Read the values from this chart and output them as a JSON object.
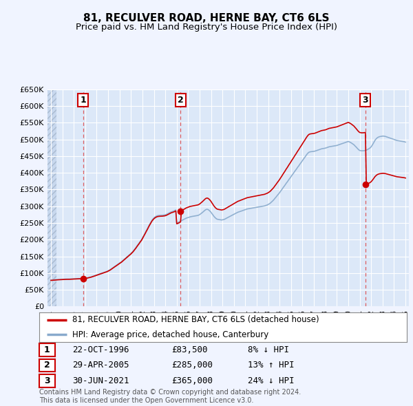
{
  "title": "81, RECULVER ROAD, HERNE BAY, CT6 6LS",
  "subtitle": "Price paid vs. HM Land Registry's House Price Index (HPI)",
  "ytick_values": [
    0,
    50000,
    100000,
    150000,
    200000,
    250000,
    300000,
    350000,
    400000,
    450000,
    500000,
    550000,
    600000,
    650000
  ],
  "xmin": 1993.7,
  "xmax": 2025.3,
  "ymin": 0,
  "ymax": 650000,
  "background_color": "#f0f4ff",
  "plot_bg_color": "#dce8f8",
  "purchases": [
    {
      "year": 1996.81,
      "price": 83500,
      "label": "1"
    },
    {
      "year": 2005.33,
      "price": 285000,
      "label": "2"
    },
    {
      "year": 2021.5,
      "price": 365000,
      "label": "3"
    }
  ],
  "legend_line1": "81, RECULVER ROAD, HERNE BAY, CT6 6LS (detached house)",
  "legend_line2": "HPI: Average price, detached house, Canterbury",
  "table_rows": [
    {
      "num": "1",
      "date": "22-OCT-1996",
      "price": "£83,500",
      "change": "8% ↓ HPI"
    },
    {
      "num": "2",
      "date": "29-APR-2005",
      "price": "£285,000",
      "change": "13% ↑ HPI"
    },
    {
      "num": "3",
      "date": "30-JUN-2021",
      "price": "£365,000",
      "change": "24% ↓ HPI"
    }
  ],
  "footer": "Contains HM Land Registry data © Crown copyright and database right 2024.\nThis data is licensed under the Open Government Licence v3.0.",
  "red_line_color": "#cc0000",
  "blue_line_color": "#88aacc",
  "dashed_line_color": "#dd4444",
  "sale_marker_color": "#cc0000",
  "hpi_years": [
    1994.0,
    1994.08,
    1994.17,
    1994.25,
    1994.33,
    1994.42,
    1994.5,
    1994.58,
    1994.67,
    1994.75,
    1994.83,
    1994.92,
    1995.0,
    1995.08,
    1995.17,
    1995.25,
    1995.33,
    1995.42,
    1995.5,
    1995.58,
    1995.67,
    1995.75,
    1995.83,
    1995.92,
    1996.0,
    1996.08,
    1996.17,
    1996.25,
    1996.33,
    1996.42,
    1996.5,
    1996.58,
    1996.67,
    1996.75,
    1996.83,
    1996.92,
    1997.0,
    1997.08,
    1997.17,
    1997.25,
    1997.33,
    1997.42,
    1997.5,
    1997.58,
    1997.67,
    1997.75,
    1997.83,
    1997.92,
    1998.0,
    1998.08,
    1998.17,
    1998.25,
    1998.33,
    1998.42,
    1998.5,
    1998.58,
    1998.67,
    1998.75,
    1998.83,
    1998.92,
    1999.0,
    1999.08,
    1999.17,
    1999.25,
    1999.33,
    1999.42,
    1999.5,
    1999.58,
    1999.67,
    1999.75,
    1999.83,
    1999.92,
    2000.0,
    2000.08,
    2000.17,
    2000.25,
    2000.33,
    2000.42,
    2000.5,
    2000.58,
    2000.67,
    2000.75,
    2000.83,
    2000.92,
    2001.0,
    2001.08,
    2001.17,
    2001.25,
    2001.33,
    2001.42,
    2001.5,
    2001.58,
    2001.67,
    2001.75,
    2001.83,
    2001.92,
    2002.0,
    2002.08,
    2002.17,
    2002.25,
    2002.33,
    2002.42,
    2002.5,
    2002.58,
    2002.67,
    2002.75,
    2002.83,
    2002.92,
    2003.0,
    2003.08,
    2003.17,
    2003.25,
    2003.33,
    2003.42,
    2003.5,
    2003.58,
    2003.67,
    2003.75,
    2003.83,
    2003.92,
    2004.0,
    2004.08,
    2004.17,
    2004.25,
    2004.33,
    2004.42,
    2004.5,
    2004.58,
    2004.67,
    2004.75,
    2004.83,
    2004.92,
    2005.0,
    2005.08,
    2005.17,
    2005.25,
    2005.33,
    2005.42,
    2005.5,
    2005.58,
    2005.67,
    2005.75,
    2005.83,
    2005.92,
    2006.0,
    2006.08,
    2006.17,
    2006.25,
    2006.33,
    2006.42,
    2006.5,
    2006.58,
    2006.67,
    2006.75,
    2006.83,
    2006.92,
    2007.0,
    2007.08,
    2007.17,
    2007.25,
    2007.33,
    2007.42,
    2007.5,
    2007.58,
    2007.67,
    2007.75,
    2007.83,
    2007.92,
    2008.0,
    2008.08,
    2008.17,
    2008.25,
    2008.33,
    2008.42,
    2008.5,
    2008.58,
    2008.67,
    2008.75,
    2008.83,
    2008.92,
    2009.0,
    2009.08,
    2009.17,
    2009.25,
    2009.33,
    2009.42,
    2009.5,
    2009.58,
    2009.67,
    2009.75,
    2009.83,
    2009.92,
    2010.0,
    2010.08,
    2010.17,
    2010.25,
    2010.33,
    2010.42,
    2010.5,
    2010.58,
    2010.67,
    2010.75,
    2010.83,
    2010.92,
    2011.0,
    2011.08,
    2011.17,
    2011.25,
    2011.33,
    2011.42,
    2011.5,
    2011.58,
    2011.67,
    2011.75,
    2011.83,
    2011.92,
    2012.0,
    2012.08,
    2012.17,
    2012.25,
    2012.33,
    2012.42,
    2012.5,
    2012.58,
    2012.67,
    2012.75,
    2012.83,
    2012.92,
    2013.0,
    2013.08,
    2013.17,
    2013.25,
    2013.33,
    2013.42,
    2013.5,
    2013.58,
    2013.67,
    2013.75,
    2013.83,
    2013.92,
    2014.0,
    2014.08,
    2014.17,
    2014.25,
    2014.33,
    2014.42,
    2014.5,
    2014.58,
    2014.67,
    2014.75,
    2014.83,
    2014.92,
    2015.0,
    2015.08,
    2015.17,
    2015.25,
    2015.33,
    2015.42,
    2015.5,
    2015.58,
    2015.67,
    2015.75,
    2015.83,
    2015.92,
    2016.0,
    2016.08,
    2016.17,
    2016.25,
    2016.33,
    2016.42,
    2016.5,
    2016.58,
    2016.67,
    2016.75,
    2016.83,
    2016.92,
    2017.0,
    2017.08,
    2017.17,
    2017.25,
    2017.33,
    2017.42,
    2017.5,
    2017.58,
    2017.67,
    2017.75,
    2017.83,
    2017.92,
    2018.0,
    2018.08,
    2018.17,
    2018.25,
    2018.33,
    2018.42,
    2018.5,
    2018.58,
    2018.67,
    2018.75,
    2018.83,
    2018.92,
    2019.0,
    2019.08,
    2019.17,
    2019.25,
    2019.33,
    2019.42,
    2019.5,
    2019.58,
    2019.67,
    2019.75,
    2019.83,
    2019.92,
    2020.0,
    2020.08,
    2020.17,
    2020.25,
    2020.33,
    2020.42,
    2020.5,
    2020.58,
    2020.67,
    2020.75,
    2020.83,
    2020.92,
    2021.0,
    2021.08,
    2021.17,
    2021.25,
    2021.33,
    2021.42,
    2021.5,
    2021.58,
    2021.67,
    2021.75,
    2021.83,
    2021.92,
    2022.0,
    2022.08,
    2022.17,
    2022.25,
    2022.33,
    2022.42,
    2022.5,
    2022.58,
    2022.67,
    2022.75,
    2022.83,
    2022.92,
    2023.0,
    2023.08,
    2023.17,
    2023.25,
    2023.33,
    2023.42,
    2023.5,
    2023.58,
    2023.67,
    2023.75,
    2023.83,
    2023.92,
    2024.0,
    2024.08,
    2024.17,
    2024.25,
    2024.33,
    2024.42,
    2024.5,
    2024.58,
    2024.67,
    2024.75,
    2024.83,
    2024.92,
    2025.0
  ],
  "hpi_values": [
    79000,
    79200,
    79500,
    79800,
    80000,
    80200,
    80500,
    80700,
    80900,
    81100,
    81300,
    81500,
    81700,
    81900,
    82000,
    82100,
    82200,
    82200,
    82200,
    82300,
    82400,
    82500,
    82700,
    82900,
    83000,
    83200,
    83400,
    83500,
    83600,
    83700,
    83800,
    83900,
    84100,
    84200,
    84400,
    84700,
    85000,
    85400,
    85900,
    86500,
    87100,
    87800,
    88600,
    89500,
    90500,
    91500,
    92500,
    93500,
    94500,
    95500,
    96500,
    97500,
    98500,
    99500,
    100500,
    101500,
    102500,
    103500,
    104500,
    105500,
    107000,
    108500,
    110000,
    112000,
    114000,
    116000,
    118000,
    120000,
    122000,
    124000,
    126000,
    128000,
    130000,
    132000,
    134000,
    136500,
    139000,
    141500,
    144000,
    146500,
    149000,
    151500,
    154000,
    156500,
    159000,
    162000,
    165000,
    168500,
    172000,
    176000,
    180000,
    184000,
    188000,
    192000,
    196000,
    200000,
    205000,
    210000,
    215500,
    221000,
    226500,
    232000,
    237500,
    243000,
    248500,
    253500,
    258000,
    262000,
    265000,
    267500,
    269500,
    271000,
    272000,
    272500,
    272800,
    272900,
    273000,
    273200,
    273500,
    274000,
    274500,
    275500,
    277000,
    278500,
    280000,
    281500,
    283000,
    284000,
    285000,
    286000,
    287500,
    289000,
    250000,
    251000,
    252500,
    254000,
    255500,
    257000,
    258500,
    260000,
    261500,
    263000,
    264500,
    265500,
    266500,
    267500,
    268500,
    269000,
    269500,
    270000,
    270500,
    271000,
    271500,
    272000,
    272500,
    273500,
    275000,
    277000,
    279000,
    281500,
    284000,
    286500,
    289000,
    290500,
    291000,
    290000,
    288000,
    285000,
    282000,
    278000,
    274000,
    270000,
    267000,
    264000,
    262000,
    261000,
    260500,
    260000,
    259500,
    259000,
    259500,
    260000,
    261000,
    262500,
    264000,
    265500,
    267000,
    268500,
    270000,
    271500,
    273000,
    274500,
    276000,
    277500,
    279000,
    280500,
    282000,
    283000,
    284000,
    285000,
    286000,
    287000,
    288000,
    289000,
    290000,
    291000,
    292000,
    292500,
    293000,
    293500,
    294000,
    294500,
    295000,
    295500,
    296000,
    296500,
    297000,
    297500,
    298000,
    298500,
    299000,
    299500,
    300000,
    300500,
    301000,
    302000,
    303000,
    304000,
    305500,
    307000,
    309000,
    311500,
    314000,
    317000,
    320000,
    323500,
    327000,
    330500,
    334000,
    337500,
    341000,
    345000,
    349000,
    353000,
    357000,
    361000,
    365000,
    369000,
    373000,
    377000,
    381000,
    385000,
    389000,
    393000,
    397000,
    401000,
    405000,
    409000,
    413000,
    417000,
    421000,
    425000,
    429000,
    433000,
    437000,
    441000,
    445000,
    449000,
    453000,
    457000,
    460000,
    462000,
    463000,
    463500,
    463800,
    464000,
    464500,
    465000,
    466000,
    467000,
    468000,
    469000,
    470000,
    471000,
    472000,
    472500,
    473000,
    473500,
    474000,
    475000,
    476000,
    477000,
    478000,
    478500,
    479000,
    479500,
    480000,
    480500,
    481000,
    481500,
    482000,
    483000,
    484000,
    485000,
    486000,
    487000,
    488000,
    489000,
    490000,
    491000,
    492000,
    493000,
    494000,
    493000,
    491500,
    490000,
    488000,
    486000,
    484000,
    481000,
    478000,
    475000,
    472000,
    469000,
    467000,
    466500,
    466000,
    466000,
    466200,
    466500,
    467000,
    468000,
    469500,
    471000,
    473000,
    475000,
    478000,
    482000,
    487000,
    492000,
    497000,
    501000,
    504000,
    506000,
    507500,
    508500,
    509000,
    509500,
    510000,
    510000,
    509500,
    509000,
    508000,
    507000,
    506000,
    505000,
    504000,
    503000,
    502000,
    501000,
    500000,
    499000,
    498000,
    497000,
    496500,
    496000,
    495500,
    495000,
    494500,
    494000,
    493500,
    493000,
    492000
  ]
}
